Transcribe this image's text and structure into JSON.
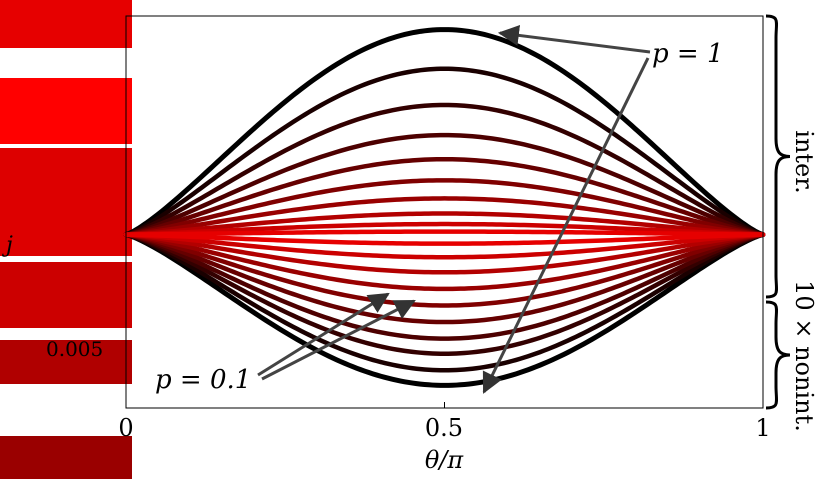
{
  "chart_data": {
    "type": "line",
    "xlabel": "θ/π",
    "ylabel": "j",
    "x_ticks": [
      "0",
      "0.5",
      "1"
    ],
    "y_tick_partial": "0.005",
    "xlim": [
      0,
      1
    ],
    "ylim": [
      -1.15,
      1.45
    ],
    "series": [
      {
        "p": 1.0,
        "amplitude": 1.36,
        "color": "#000000"
      },
      {
        "p": 0.9,
        "amplitude": 1.1,
        "color": "#1a0000"
      },
      {
        "p": 0.8,
        "amplitude": 0.86,
        "color": "#330000"
      },
      {
        "p": 0.7,
        "amplitude": 0.66,
        "color": "#4d0000"
      },
      {
        "p": 0.6,
        "amplitude": 0.5,
        "color": "#660000"
      },
      {
        "p": 0.5,
        "amplitude": 0.36,
        "color": "#800000"
      },
      {
        "p": 0.4,
        "amplitude": 0.24,
        "color": "#990000"
      },
      {
        "p": 0.3,
        "amplitude": 0.14,
        "color": "#b30000"
      },
      {
        "p": 0.2,
        "amplitude": 0.07,
        "color": "#cc0000"
      },
      {
        "p": 0.1,
        "amplitude": 0.02,
        "color": "#e60000"
      },
      {
        "p": 0.1,
        "amplitude": -0.06,
        "color": "#e60000"
      },
      {
        "p": 0.2,
        "amplitude": -0.15,
        "color": "#cc0000"
      },
      {
        "p": 0.3,
        "amplitude": -0.25,
        "color": "#b30000"
      },
      {
        "p": 0.4,
        "amplitude": -0.36,
        "color": "#990000"
      },
      {
        "p": 0.5,
        "amplitude": -0.47,
        "color": "#800000"
      },
      {
        "p": 0.6,
        "amplitude": -0.58,
        "color": "#660000"
      },
      {
        "p": 0.7,
        "amplitude": -0.69,
        "color": "#4d0000"
      },
      {
        "p": 0.8,
        "amplitude": -0.79,
        "color": "#330000"
      },
      {
        "p": 0.9,
        "amplitude": -0.9,
        "color": "#1a0000"
      },
      {
        "p": 1.0,
        "amplitude": -1.0,
        "color": "#000000"
      }
    ],
    "annotations": {
      "p_high": "p = 1",
      "p_low": "p = 0.1",
      "bracket_upper": "inter.",
      "bracket_lower": "10 × nonint."
    },
    "grid": false,
    "legend": "none"
  },
  "colorbar_swatches": [
    "#e60000",
    "#ff0000",
    "#dd0000",
    "#cc0000",
    "#b00000",
    "#9a0000",
    "#700000"
  ]
}
